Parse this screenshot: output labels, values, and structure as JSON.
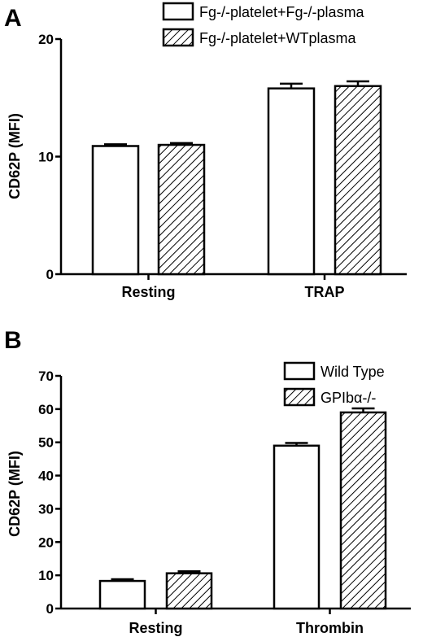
{
  "chart_data": [
    {
      "panel": "A",
      "type": "bar",
      "ylabel": "CD62P (MFI)",
      "ylim": [
        0,
        20
      ],
      "yticks": [
        0,
        10,
        20
      ],
      "categories": [
        "Resting",
        "TRAP"
      ],
      "series": [
        {
          "name": "Fg-/-platelet+Fg-/-plasma",
          "pattern": "solid-white",
          "values": [
            10.9,
            15.8
          ],
          "errors": [
            0.15,
            0.4
          ]
        },
        {
          "name": "Fg-/-platelet+WTplasma",
          "pattern": "hatched",
          "values": [
            11.0,
            16.0
          ],
          "errors": [
            0.15,
            0.4
          ]
        }
      ]
    },
    {
      "panel": "B",
      "type": "bar",
      "ylabel": "CD62P (MFI)",
      "ylim": [
        0,
        70
      ],
      "yticks": [
        0,
        10,
        20,
        30,
        40,
        50,
        60,
        70
      ],
      "categories": [
        "Resting",
        "Thrombin"
      ],
      "series": [
        {
          "name": "Wild Type",
          "pattern": "solid-white",
          "values": [
            8.3,
            49.0
          ],
          "errors": [
            0.5,
            0.8
          ]
        },
        {
          "name": "GPIbα-/-",
          "pattern": "hatched",
          "values": [
            10.6,
            59.0
          ],
          "errors": [
            0.6,
            1.2
          ]
        }
      ]
    }
  ]
}
